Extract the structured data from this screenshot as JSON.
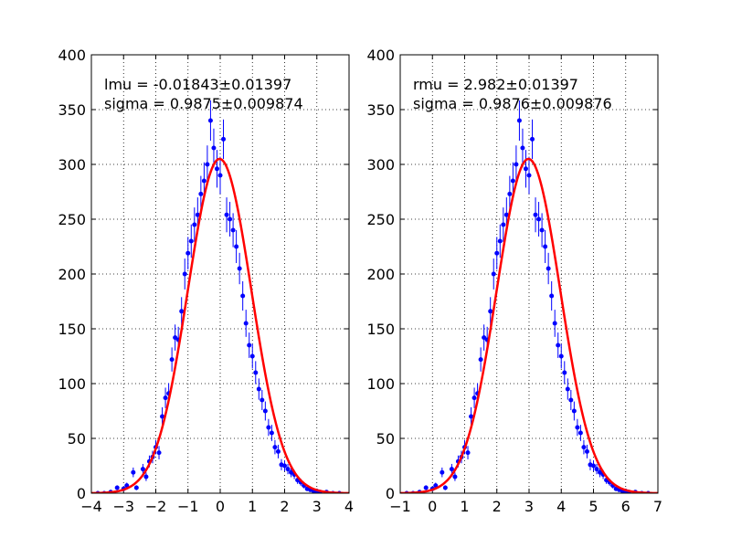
{
  "chart_data": [
    {
      "type": "scatter",
      "annotation": [
        "lmu = -0.01843±0.01397",
        "sigma = 0.9875±0.009874"
      ],
      "xlim": [
        -4,
        4
      ],
      "ylim": [
        0,
        400
      ],
      "x_ticks": [
        -4,
        -3,
        -2,
        -1,
        0,
        1,
        2,
        3,
        4
      ],
      "y_ticks": [
        0,
        50,
        100,
        150,
        200,
        250,
        300,
        350,
        400
      ],
      "x_tick_labels": [
        "−4",
        "−3",
        "−2",
        "−1",
        "0",
        "1",
        "2",
        "3",
        "4"
      ],
      "y_tick_labels": [
        "0",
        "50",
        "100",
        "150",
        "200",
        "250",
        "300",
        "350",
        "400"
      ],
      "grid": true,
      "series": [
        {
          "kind": "errorbar",
          "color": "#0000ff",
          "x": [
            -3.8,
            -3.6,
            -3.4,
            -3.2,
            -3.0,
            -2.9,
            -2.7,
            -2.6,
            -2.4,
            -2.3,
            -2.2,
            -2.1,
            -2.0,
            -1.9,
            -1.8,
            -1.7,
            -1.6,
            -1.5,
            -1.4,
            -1.3,
            -1.2,
            -1.1,
            -1.0,
            -0.9,
            -0.8,
            -0.7,
            -0.6,
            -0.5,
            -0.4,
            -0.3,
            -0.2,
            -0.1,
            0.0,
            0.1,
            0.2,
            0.3,
            0.4,
            0.5,
            0.6,
            0.7,
            0.8,
            0.9,
            1.0,
            1.1,
            1.2,
            1.3,
            1.4,
            1.5,
            1.6,
            1.7,
            1.8,
            1.9,
            2.0,
            2.1,
            2.2,
            2.3,
            2.4,
            2.5,
            2.6,
            2.7,
            2.8,
            2.9,
            3.0,
            3.1,
            3.3,
            3.5,
            3.7
          ],
          "y": [
            0,
            0,
            1,
            5,
            4,
            7,
            19,
            5,
            22,
            15,
            29,
            33,
            42,
            37,
            70,
            87,
            91,
            122,
            142,
            140,
            166,
            200,
            219,
            230,
            245,
            254,
            273,
            285,
            300,
            340,
            315,
            296,
            290,
            323,
            254,
            250,
            240,
            225,
            205,
            180,
            155,
            135,
            125,
            110,
            95,
            85,
            75,
            60,
            55,
            42,
            38,
            26,
            25,
            22,
            19,
            17,
            12,
            10,
            7,
            4,
            3,
            2,
            2,
            1,
            1,
            0,
            0
          ],
          "yerr": [
            0,
            0,
            1,
            2.2,
            2,
            2.6,
            4.4,
            2.2,
            4.7,
            3.9,
            5.4,
            5.7,
            6.5,
            6.1,
            8.4,
            9.3,
            9.5,
            11,
            11.9,
            11.8,
            12.9,
            14.1,
            14.8,
            15.2,
            15.7,
            15.9,
            16.5,
            16.9,
            17.3,
            18.4,
            17.7,
            17.2,
            17,
            18,
            15.9,
            15.8,
            15.5,
            15,
            14.3,
            13.4,
            12.4,
            11.6,
            11.2,
            10.5,
            9.7,
            9.2,
            8.7,
            7.7,
            7.4,
            6.5,
            6.2,
            5.1,
            5,
            4.7,
            4.4,
            4.1,
            3.5,
            3.2,
            2.6,
            2,
            1.7,
            1.4,
            1.4,
            1,
            1,
            0,
            0
          ]
        },
        {
          "kind": "gaussian_fit",
          "color": "#ff0000",
          "amplitude": 305,
          "mu": -0.01843,
          "sigma": 0.9875
        }
      ]
    },
    {
      "type": "scatter",
      "annotation": [
        "rmu = 2.982±0.01397",
        "sigma = 0.9876±0.009876"
      ],
      "xlim": [
        -1,
        7
      ],
      "ylim": [
        0,
        400
      ],
      "x_ticks": [
        -1,
        0,
        1,
        2,
        3,
        4,
        5,
        6,
        7
      ],
      "y_ticks": [
        0,
        50,
        100,
        150,
        200,
        250,
        300,
        350,
        400
      ],
      "x_tick_labels": [
        "−1",
        "0",
        "1",
        "2",
        "3",
        "4",
        "5",
        "6",
        "7"
      ],
      "y_tick_labels": [
        "0",
        "50",
        "100",
        "150",
        "200",
        "250",
        "300",
        "350",
        "400"
      ],
      "grid": true,
      "series": [
        {
          "kind": "errorbar",
          "color": "#0000ff",
          "x": [
            -0.8,
            -0.6,
            -0.4,
            -0.2,
            0.0,
            0.1,
            0.3,
            0.4,
            0.6,
            0.7,
            0.8,
            0.9,
            1.0,
            1.1,
            1.2,
            1.3,
            1.4,
            1.5,
            1.6,
            1.7,
            1.8,
            1.9,
            2.0,
            2.1,
            2.2,
            2.3,
            2.4,
            2.5,
            2.6,
            2.7,
            2.8,
            2.9,
            3.0,
            3.1,
            3.2,
            3.3,
            3.4,
            3.5,
            3.6,
            3.7,
            3.8,
            3.9,
            4.0,
            4.1,
            4.2,
            4.3,
            4.4,
            4.5,
            4.6,
            4.7,
            4.8,
            4.9,
            5.0,
            5.1,
            5.2,
            5.3,
            5.4,
            5.5,
            5.6,
            5.7,
            5.8,
            5.9,
            6.0,
            6.1,
            6.3,
            6.5,
            6.7
          ],
          "y": [
            0,
            0,
            1,
            5,
            4,
            7,
            19,
            5,
            22,
            15,
            29,
            33,
            42,
            37,
            70,
            87,
            91,
            122,
            142,
            140,
            166,
            200,
            219,
            230,
            245,
            254,
            273,
            285,
            300,
            340,
            315,
            296,
            290,
            323,
            254,
            250,
            240,
            225,
            205,
            180,
            155,
            135,
            125,
            110,
            95,
            85,
            75,
            60,
            55,
            42,
            38,
            26,
            25,
            22,
            19,
            17,
            12,
            10,
            7,
            4,
            3,
            2,
            2,
            1,
            1,
            0,
            0
          ],
          "yerr": [
            0,
            0,
            1,
            2.2,
            2,
            2.6,
            4.4,
            2.2,
            4.7,
            3.9,
            5.4,
            5.7,
            6.5,
            6.1,
            8.4,
            9.3,
            9.5,
            11,
            11.9,
            11.8,
            12.9,
            14.1,
            14.8,
            15.2,
            15.7,
            15.9,
            16.5,
            16.9,
            17.3,
            18.4,
            17.7,
            17.2,
            17,
            18,
            15.9,
            15.8,
            15.5,
            15,
            14.3,
            13.4,
            12.4,
            11.6,
            11.2,
            10.5,
            9.7,
            9.2,
            8.7,
            7.7,
            7.4,
            6.5,
            6.2,
            5.1,
            5,
            4.7,
            4.4,
            4.1,
            3.5,
            3.2,
            2.6,
            2,
            1.7,
            1.4,
            1.4,
            1,
            1,
            0,
            0
          ]
        },
        {
          "kind": "gaussian_fit",
          "color": "#ff0000",
          "amplitude": 305,
          "mu": 2.982,
          "sigma": 0.9876
        }
      ]
    }
  ]
}
